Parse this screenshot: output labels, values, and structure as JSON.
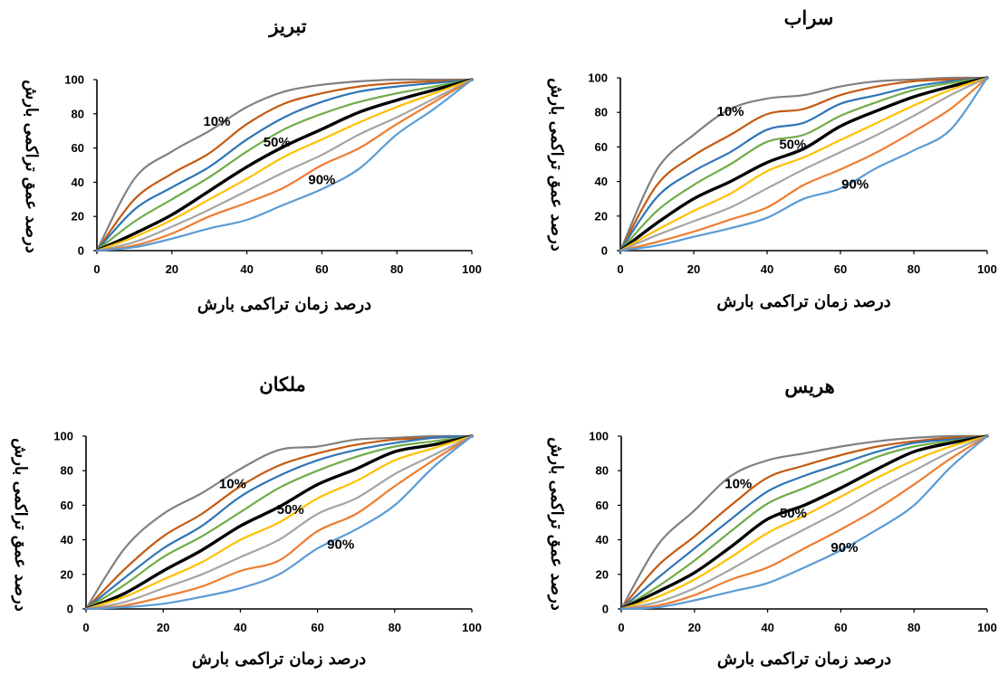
{
  "chart_data": [
    {
      "type": "line",
      "title": "تبریز",
      "xlabel": "درصد زمان تراکمی بارش",
      "ylabel": "درصد عمق تراکمی بارش",
      "xlim": [
        0,
        100
      ],
      "ylim": [
        0,
        100
      ],
      "x_ticks": [
        "0",
        "20",
        "40",
        "60",
        "80",
        "100"
      ],
      "y_ticks": [
        "0",
        "20",
        "40",
        "60",
        "80",
        "100"
      ],
      "x": [
        0,
        10,
        20,
        30,
        40,
        50,
        60,
        70,
        80,
        90,
        100
      ],
      "series": [
        {
          "color": "#808080",
          "values": [
            0,
            42,
            58,
            70,
            84,
            93,
            97,
            99,
            100,
            100,
            100
          ]
        },
        {
          "color": "#c55a11",
          "values": [
            0,
            30,
            45,
            57,
            74,
            86,
            92,
            96,
            98,
            99,
            100
          ]
        },
        {
          "color": "#2e75b6",
          "values": [
            0,
            24,
            37,
            49,
            65,
            78,
            87,
            93,
            96,
            98,
            100
          ]
        },
        {
          "color": "#70ad47",
          "values": [
            0,
            17,
            30,
            43,
            58,
            71,
            80,
            87,
            92,
            96,
            100
          ]
        },
        {
          "color": "#000000",
          "values": [
            0,
            10,
            21,
            35,
            49,
            61,
            71,
            81,
            88,
            94,
            100
          ]
        },
        {
          "color": "#ffc000",
          "values": [
            0,
            8,
            18,
            30,
            42,
            55,
            65,
            75,
            84,
            92,
            100
          ]
        },
        {
          "color": "#a5a5a5",
          "values": [
            0,
            5,
            14,
            24,
            35,
            46,
            56,
            68,
            78,
            89,
            100
          ]
        },
        {
          "color": "#ed7d31",
          "values": [
            0,
            3,
            10,
            20,
            28,
            37,
            50,
            60,
            74,
            87,
            100
          ]
        },
        {
          "color": "#5b9bd5",
          "values": [
            0,
            2,
            7,
            13,
            18,
            27,
            36,
            48,
            68,
            83,
            100
          ]
        }
      ],
      "annotations": [
        {
          "text": "10%",
          "x": 32,
          "y": 75
        },
        {
          "text": "50%",
          "x": 48,
          "y": 63
        },
        {
          "text": "90%",
          "x": 60,
          "y": 41
        }
      ]
    },
    {
      "type": "line",
      "title": "سراب",
      "xlabel": "درصد زمان تراکمی بارش",
      "ylabel": "درصد عمق تراکمی بارش",
      "xlim": [
        0,
        100
      ],
      "ylim": [
        0,
        100
      ],
      "x_ticks": [
        "0",
        "20",
        "40",
        "60",
        "80",
        "100"
      ],
      "y_ticks": [
        "0",
        "20",
        "40",
        "60",
        "80",
        "100"
      ],
      "x": [
        0,
        10,
        20,
        30,
        40,
        50,
        60,
        70,
        80,
        90,
        100
      ],
      "series": [
        {
          "color": "#808080",
          "values": [
            0,
            47,
            67,
            82,
            88,
            90,
            95,
            98,
            99,
            100,
            100
          ]
        },
        {
          "color": "#c55a11",
          "values": [
            0,
            38,
            55,
            67,
            79,
            82,
            90,
            95,
            98,
            99,
            100
          ]
        },
        {
          "color": "#2e75b6",
          "values": [
            0,
            31,
            46,
            57,
            70,
            74,
            85,
            90,
            95,
            98,
            100
          ]
        },
        {
          "color": "#70ad47",
          "values": [
            0,
            23,
            38,
            50,
            63,
            67,
            78,
            86,
            93,
            97,
            100
          ]
        },
        {
          "color": "#000000",
          "values": [
            0,
            16,
            30,
            40,
            51,
            59,
            72,
            81,
            89,
            95,
            100
          ]
        },
        {
          "color": "#ffc000",
          "values": [
            0,
            12,
            23,
            33,
            46,
            54,
            64,
            74,
            84,
            93,
            100
          ]
        },
        {
          "color": "#a5a5a5",
          "values": [
            0,
            9,
            17,
            25,
            36,
            47,
            57,
            67,
            78,
            90,
            100
          ]
        },
        {
          "color": "#ed7d31",
          "values": [
            0,
            5,
            11,
            18,
            25,
            38,
            47,
            57,
            69,
            82,
            100
          ]
        },
        {
          "color": "#5b9bd5",
          "values": [
            0,
            3,
            8,
            13,
            19,
            30,
            36,
            48,
            58,
            70,
            100
          ]
        }
      ],
      "annotations": [
        {
          "text": "10%",
          "x": 30,
          "y": 80
        },
        {
          "text": "50%",
          "x": 47,
          "y": 61
        },
        {
          "text": "90%",
          "x": 64,
          "y": 38
        }
      ]
    },
    {
      "type": "line",
      "title": "ملکان",
      "xlabel": "درصد زمان تراکمی بارش",
      "ylabel": "درصد عمق تراکمی بارش",
      "xlim": [
        0,
        100
      ],
      "ylim": [
        0,
        100
      ],
      "x_ticks": [
        "0",
        "20",
        "40",
        "60",
        "80",
        "100"
      ],
      "y_ticks": [
        "0",
        "20",
        "40",
        "60",
        "80",
        "100"
      ],
      "x": [
        0,
        10,
        20,
        30,
        40,
        50,
        60,
        70,
        80,
        90,
        100
      ],
      "series": [
        {
          "color": "#808080",
          "values": [
            0,
            35,
            55,
            67,
            81,
            92,
            94,
            98,
            99,
            100,
            100
          ]
        },
        {
          "color": "#c55a11",
          "values": [
            0,
            23,
            42,
            55,
            71,
            83,
            90,
            95,
            98,
            99,
            100
          ]
        },
        {
          "color": "#2e75b6",
          "values": [
            0,
            18,
            35,
            48,
            65,
            77,
            86,
            92,
            96,
            99,
            100
          ]
        },
        {
          "color": "#70ad47",
          "values": [
            0,
            14,
            30,
            42,
            56,
            70,
            80,
            88,
            94,
            97,
            100
          ]
        },
        {
          "color": "#000000",
          "values": [
            0,
            9,
            22,
            34,
            48,
            59,
            72,
            81,
            91,
            95,
            100
          ]
        },
        {
          "color": "#ffc000",
          "values": [
            0,
            7,
            17,
            27,
            40,
            50,
            64,
            74,
            86,
            93,
            100
          ]
        },
        {
          "color": "#a5a5a5",
          "values": [
            0,
            4,
            12,
            20,
            30,
            40,
            55,
            64,
            78,
            89,
            100
          ]
        },
        {
          "color": "#ed7d31",
          "values": [
            0,
            2,
            7,
            13,
            22,
            28,
            45,
            55,
            71,
            86,
            100
          ]
        },
        {
          "color": "#5b9bd5",
          "values": [
            0,
            1,
            3,
            7,
            12,
            20,
            35,
            46,
            60,
            82,
            100
          ]
        }
      ],
      "annotations": [
        {
          "text": "10%",
          "x": 38,
          "y": 72
        },
        {
          "text": "50%",
          "x": 53,
          "y": 57
        },
        {
          "text": "90%",
          "x": 66,
          "y": 37
        }
      ]
    },
    {
      "type": "line",
      "title": "هریس",
      "xlabel": "درصد زمان تراکمی بارش",
      "ylabel": "درصد عمق تراکمی بارش",
      "xlim": [
        0,
        100
      ],
      "ylim": [
        0,
        100
      ],
      "x_ticks": [
        "0",
        "20",
        "40",
        "60",
        "80",
        "100"
      ],
      "y_ticks": [
        "0",
        "20",
        "40",
        "60",
        "80",
        "100"
      ],
      "x": [
        0,
        10,
        20,
        30,
        40,
        50,
        60,
        70,
        80,
        90,
        100
      ],
      "series": [
        {
          "color": "#808080",
          "values": [
            0,
            37,
            57,
            77,
            86,
            90,
            94,
            97,
            99,
            100,
            100
          ]
        },
        {
          "color": "#c55a11",
          "values": [
            0,
            25,
            42,
            60,
            76,
            83,
            89,
            94,
            97,
            99,
            100
          ]
        },
        {
          "color": "#2e75b6",
          "values": [
            0,
            18,
            35,
            52,
            68,
            77,
            84,
            91,
            96,
            98,
            100
          ]
        },
        {
          "color": "#70ad47",
          "values": [
            0,
            13,
            28,
            45,
            61,
            70,
            79,
            88,
            94,
            97,
            100
          ]
        },
        {
          "color": "#000000",
          "values": [
            0,
            10,
            21,
            36,
            52,
            60,
            70,
            81,
            91,
            96,
            100
          ]
        },
        {
          "color": "#ffc000",
          "values": [
            0,
            7,
            17,
            30,
            44,
            54,
            65,
            76,
            86,
            94,
            100
          ]
        },
        {
          "color": "#a5a5a5",
          "values": [
            0,
            4,
            12,
            23,
            35,
            46,
            57,
            69,
            80,
            91,
            100
          ]
        },
        {
          "color": "#ed7d31",
          "values": [
            0,
            2,
            8,
            17,
            24,
            35,
            46,
            58,
            72,
            87,
            100
          ]
        },
        {
          "color": "#5b9bd5",
          "values": [
            0,
            1,
            5,
            10,
            15,
            24,
            34,
            46,
            60,
            82,
            100
          ]
        }
      ],
      "annotations": [
        {
          "text": "10%",
          "x": 32,
          "y": 72
        },
        {
          "text": "50%",
          "x": 47,
          "y": 55
        },
        {
          "text": "90%",
          "x": 61,
          "y": 35
        }
      ]
    }
  ]
}
